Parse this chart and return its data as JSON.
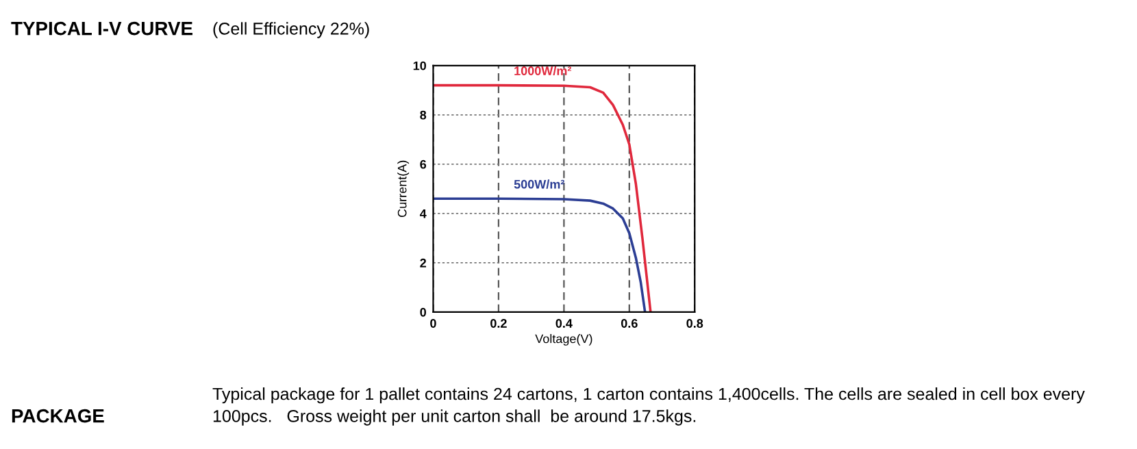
{
  "chart_data": {
    "type": "line",
    "title": "TYPICAL I-V CURVE",
    "subtitle": "(Cell Efficiency 22%)",
    "xlabel": "Voltage(V)",
    "ylabel": "Current(A)",
    "annotations": [
      "PACKAGE",
      "Typical package for 1 pallet contains 24 cartons, 1 carton contains 1,400cells. The cells are sealed in cell box every 100pcs.   Gross weight per unit carton shall  be around 17.5kgs."
    ],
    "series": [
      {
        "name": "1000W/m²",
        "color": "#e0283c",
        "x": [
          0,
          0.2,
          0.4,
          0.48,
          0.52,
          0.55,
          0.58,
          0.6,
          0.62,
          0.64,
          0.655,
          0.665
        ],
        "values": [
          9.2,
          9.2,
          9.18,
          9.12,
          8.9,
          8.4,
          7.6,
          6.8,
          5.2,
          3.0,
          1.2,
          0
        ]
      },
      {
        "name": "500W/m²",
        "color": "#2c3e94",
        "x": [
          0,
          0.2,
          0.4,
          0.48,
          0.52,
          0.55,
          0.58,
          0.6,
          0.62,
          0.635,
          0.648
        ],
        "values": [
          4.6,
          4.6,
          4.58,
          4.52,
          4.4,
          4.2,
          3.8,
          3.2,
          2.2,
          1.2,
          0
        ]
      }
    ],
    "xlim": [
      0,
      0.8
    ],
    "ylim": [
      0,
      10
    ],
    "xticks": [
      0,
      0.2,
      0.4,
      0.6,
      0.8
    ],
    "yticks": [
      0,
      2,
      4,
      6,
      8,
      10
    ],
    "grid": true,
    "legend": false,
    "line_style": "solid",
    "marker": "none"
  }
}
